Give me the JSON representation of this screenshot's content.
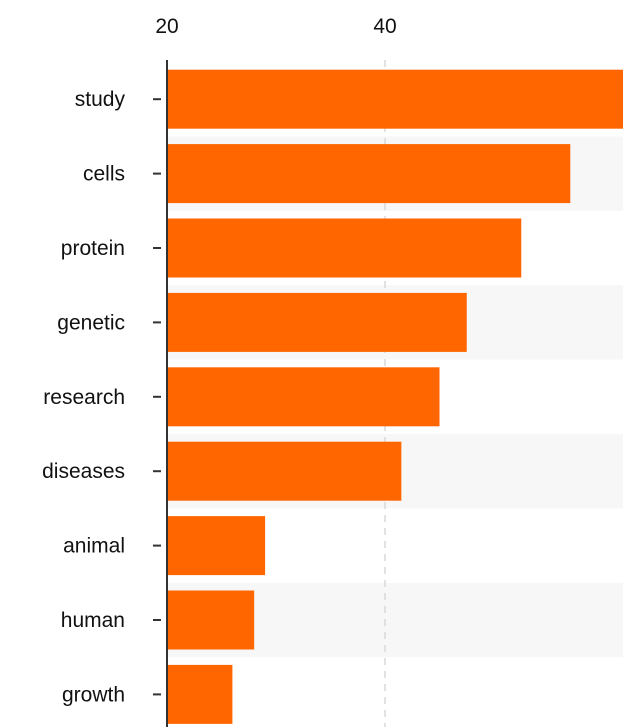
{
  "chart_data": {
    "type": "bar",
    "orientation": "horizontal",
    "categories": [
      "study",
      "cells",
      "protein",
      "genetic",
      "research",
      "diseases",
      "animal",
      "human",
      "growth"
    ],
    "values": [
      62,
      57,
      52.5,
      47.5,
      45,
      41.5,
      29,
      28,
      26
    ],
    "x_ticks": [
      20,
      40
    ],
    "xlim": [
      20,
      62
    ],
    "axis_position": "top",
    "grid": true,
    "bar_color": "#FF6600",
    "band_color": "#F7F7F7",
    "gridline_color": "#D9D9D9",
    "title": "",
    "xlabel": "",
    "ylabel": ""
  }
}
